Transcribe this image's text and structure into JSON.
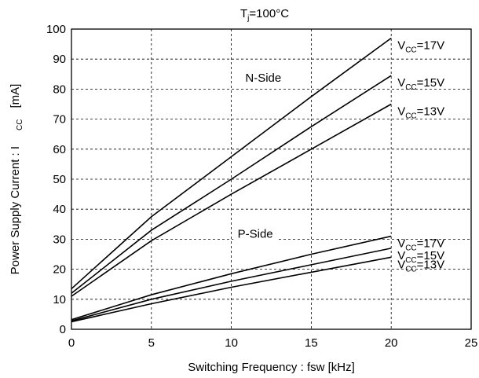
{
  "chart_data": {
    "type": "line",
    "title": {
      "main": "T",
      "sub": "j",
      "rest": "=100°C"
    },
    "xlabel": "Switching Frequency  : fsw [kHz]",
    "ylabel": {
      "main": "Power Supply Current : I",
      "sub": "CC",
      "unit": "[mA]"
    },
    "xlim": [
      0,
      25
    ],
    "ylim": [
      0,
      100
    ],
    "xticks": [
      0,
      5,
      10,
      15,
      20,
      25
    ],
    "yticks": [
      0,
      10,
      20,
      30,
      40,
      50,
      60,
      70,
      80,
      90,
      100
    ],
    "grid": true,
    "group_labels": [
      {
        "text": "N-Side",
        "x": 12.0,
        "y": 83
      },
      {
        "text": "P-Side",
        "x": 11.5,
        "y": 31
      }
    ],
    "series": [
      {
        "group": "N-Side",
        "label": {
          "v": "V",
          "sub": "CC",
          "rest": "=17V"
        },
        "x": [
          0,
          5,
          10,
          15,
          20
        ],
        "y": [
          13.5,
          37.5,
          57.5,
          77.5,
          97
        ]
      },
      {
        "group": "N-Side",
        "label": {
          "v": "V",
          "sub": "CC",
          "rest": "=15V"
        },
        "x": [
          0,
          5,
          10,
          15,
          20
        ],
        "y": [
          12,
          33,
          50,
          67.5,
          84.5
        ]
      },
      {
        "group": "N-Side",
        "label": {
          "v": "V",
          "sub": "CC",
          "rest": "=13V"
        },
        "x": [
          0,
          5,
          10,
          15,
          20
        ],
        "y": [
          11,
          29.5,
          45,
          60,
          75
        ]
      },
      {
        "group": "P-Side",
        "label": {
          "v": "V",
          "sub": "CC",
          "rest": "=17V"
        },
        "x": [
          0,
          5,
          10,
          15,
          20
        ],
        "y": [
          3.2,
          11.5,
          18.5,
          25,
          31
        ]
      },
      {
        "group": "P-Side",
        "label": {
          "v": "V",
          "sub": "CC",
          "rest": "=15V"
        },
        "x": [
          0,
          5,
          10,
          15,
          20
        ],
        "y": [
          2.8,
          10,
          16,
          21.5,
          27
        ]
      },
      {
        "group": "P-Side",
        "label": {
          "v": "V",
          "sub": "CC",
          "rest": "=13V"
        },
        "x": [
          0,
          5,
          10,
          15,
          20
        ],
        "y": [
          2.5,
          8.5,
          14,
          19,
          24
        ]
      }
    ]
  }
}
